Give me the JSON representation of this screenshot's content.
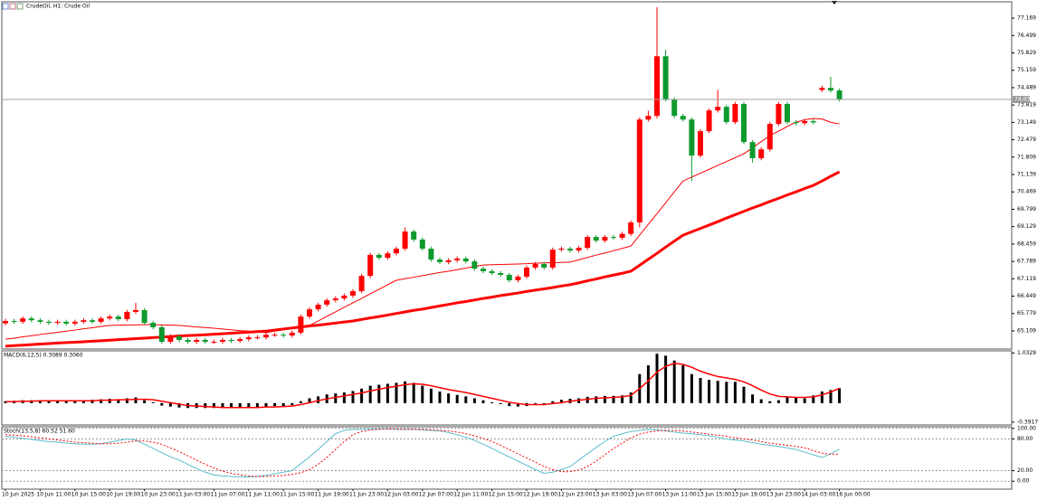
{
  "chart_data": [
    {
      "type": "candlestick",
      "title": "CrudeOil, H1: Crude Oil",
      "categories": [
        "10 Jun 2025",
        null,
        null,
        null,
        "10 Jun 11:00",
        null,
        null,
        null,
        "10 Jun 15:00",
        null,
        null,
        null,
        "10 Jun 19:00",
        null,
        null,
        null,
        "10 Jun 23:00",
        null,
        null,
        null,
        "11 Jun 03:00",
        null,
        null,
        null,
        "11 Jun 07:00",
        null,
        null,
        null,
        "11 Jun 11:00",
        null,
        null,
        null,
        "11 Jun 15:00",
        null,
        null,
        null,
        "11 Jun 19:00",
        null,
        null,
        null,
        "11 Jun 23:00",
        null,
        null,
        null,
        "12 Jun 03:00",
        null,
        null,
        null,
        "12 Jun 07:00",
        null,
        null,
        null,
        "12 Jun 11:00",
        null,
        null,
        null,
        "12 Jun 15:00",
        null,
        null,
        null,
        "12 Jun 19:00",
        null,
        null,
        null,
        "12 Jun 23:00",
        null,
        null,
        null,
        "13 Jun 03:00",
        null,
        null,
        null,
        "13 Jun 07:00",
        null,
        null,
        null,
        "13 Jun 11:00",
        null,
        null,
        null,
        "13 Jun 15:00",
        null,
        null,
        null,
        "13 Jun 19:00",
        null,
        null,
        null,
        "13 Jun 23:00",
        null,
        null,
        null,
        "14 Jun 03:00",
        null,
        null,
        null,
        "16 Jun 00:00"
      ],
      "open": [
        65.4,
        65.49,
        65.46,
        65.59,
        65.52,
        65.46,
        65.42,
        65.46,
        65.39,
        65.46,
        65.52,
        65.46,
        65.59,
        65.66,
        65.56,
        65.84,
        65.91,
        65.42,
        65.25,
        64.69,
        64.9,
        64.76,
        64.69,
        64.76,
        64.69,
        64.69,
        64.76,
        64.72,
        64.79,
        64.86,
        64.86,
        64.96,
        64.96,
        64.93,
        65.04,
        65.66,
        65.94,
        66.12,
        66.29,
        66.36,
        66.47,
        66.64,
        67.23,
        68.04,
        67.93,
        68.1,
        68.28,
        68.94,
        68.63,
        68.28,
        67.86,
        67.76,
        67.83,
        67.9,
        67.79,
        67.51,
        67.41,
        67.34,
        67.27,
        67.06,
        67.2,
        67.55,
        67.69,
        67.55,
        68.24,
        68.28,
        68.21,
        68.31,
        68.73,
        68.59,
        68.73,
        68.7,
        68.85,
        69.29,
        73.26,
        73.4,
        75.7,
        74.03,
        73.4,
        73.26,
        71.87,
        72.81,
        73.61,
        73.75,
        73.16,
        73.86,
        72.39,
        71.77,
        72.11,
        73.09,
        73.86,
        73.16,
        73.12,
        73.2,
        74.4,
        74.48,
        74.38
      ],
      "high": [
        65.57,
        65.57,
        65.67,
        65.67,
        65.6,
        65.54,
        65.54,
        65.54,
        65.54,
        65.6,
        65.6,
        65.67,
        65.74,
        65.74,
        65.92,
        66.19,
        65.99,
        65.5,
        65.33,
        64.98,
        64.98,
        64.84,
        64.84,
        64.84,
        64.77,
        64.84,
        64.84,
        64.87,
        64.94,
        64.94,
        65.04,
        65.04,
        65.04,
        65.12,
        65.74,
        66.02,
        66.2,
        66.37,
        66.44,
        66.55,
        66.72,
        67.31,
        68.12,
        68.12,
        68.18,
        68.36,
        69.1,
        69.02,
        68.71,
        68.36,
        67.94,
        67.91,
        67.98,
        67.98,
        67.87,
        67.59,
        67.49,
        67.42,
        67.35,
        67.28,
        67.63,
        67.77,
        67.77,
        68.32,
        68.36,
        68.36,
        68.39,
        68.81,
        68.81,
        68.81,
        68.81,
        68.93,
        69.37,
        73.34,
        73.6,
        77.59,
        75.95,
        74.11,
        73.48,
        73.34,
        72.89,
        73.69,
        74.4,
        73.83,
        73.94,
        73.94,
        72.47,
        72.19,
        73.17,
        73.94,
        73.94,
        73.24,
        73.28,
        73.28,
        74.56,
        74.9,
        74.46
      ],
      "low": [
        65.32,
        65.38,
        65.38,
        65.44,
        65.38,
        65.34,
        65.34,
        65.31,
        65.31,
        65.38,
        65.38,
        65.38,
        65.51,
        65.48,
        65.48,
        65.76,
        65.34,
        65.17,
        64.61,
        64.61,
        64.68,
        64.61,
        64.61,
        64.61,
        64.61,
        64.61,
        64.64,
        64.64,
        64.71,
        64.78,
        64.78,
        64.88,
        64.85,
        64.85,
        64.96,
        65.58,
        65.86,
        66.04,
        66.21,
        66.28,
        66.39,
        66.56,
        67.15,
        67.85,
        67.85,
        68.02,
        68.2,
        68.55,
        68.2,
        67.78,
        67.68,
        67.68,
        67.75,
        67.71,
        67.43,
        67.33,
        67.26,
        67.19,
        66.98,
        66.98,
        67.12,
        67.47,
        67.47,
        67.47,
        68.16,
        68.13,
        68.13,
        68.23,
        68.51,
        68.51,
        68.62,
        68.62,
        68.77,
        69.1,
        73.18,
        73.3,
        73.95,
        73.32,
        73.18,
        70.89,
        71.79,
        72.73,
        73.53,
        73.08,
        73.08,
        72.31,
        71.6,
        71.69,
        72.03,
        73.01,
        73.08,
        73.04,
        73.04,
        73.07,
        74.32,
        74.3,
        73.95
      ],
      "close": [
        65.49,
        65.46,
        65.59,
        65.52,
        65.46,
        65.42,
        65.46,
        65.39,
        65.46,
        65.52,
        65.46,
        65.59,
        65.66,
        65.56,
        65.84,
        65.91,
        65.42,
        65.25,
        64.69,
        64.9,
        64.76,
        64.69,
        64.76,
        64.69,
        64.69,
        64.76,
        64.72,
        64.79,
        64.86,
        64.86,
        64.96,
        64.96,
        64.93,
        65.04,
        65.66,
        65.94,
        66.12,
        66.29,
        66.36,
        66.47,
        66.64,
        67.23,
        68.04,
        67.93,
        68.1,
        68.28,
        68.94,
        68.63,
        68.28,
        67.86,
        67.76,
        67.83,
        67.9,
        67.79,
        67.51,
        67.41,
        67.34,
        67.27,
        67.06,
        67.2,
        67.55,
        67.69,
        67.55,
        68.24,
        68.28,
        68.21,
        68.31,
        68.73,
        68.59,
        68.73,
        68.7,
        68.85,
        69.29,
        73.26,
        73.4,
        75.7,
        74.03,
        73.4,
        73.26,
        71.87,
        72.81,
        73.61,
        73.75,
        73.16,
        73.86,
        72.39,
        71.77,
        72.11,
        73.09,
        73.86,
        73.16,
        73.12,
        73.2,
        73.15,
        74.48,
        74.38,
        74.03
      ],
      "up_color": "#ff0000",
      "down_color": "#0e9a2c",
      "series": [
        {
          "color": "#ff0000",
          "width": 1,
          "values": [
            64.79,
            64.83,
            64.88,
            64.92,
            64.97,
            65.01,
            65.05,
            65.1,
            65.14,
            65.19,
            65.23,
            65.28,
            65.32,
            65.33,
            65.34,
            65.34,
            65.35,
            65.35,
            65.34,
            65.33,
            65.32,
            65.29,
            65.26,
            65.24,
            65.21,
            65.18,
            65.15,
            65.12,
            65.1,
            65.07,
            65.04,
            65.1,
            65.15,
            65.21,
            65.26,
            65.32,
            65.49,
            65.67,
            65.84,
            66.02,
            66.19,
            66.36,
            66.54,
            66.71,
            66.89,
            67.06,
            67.12,
            67.18,
            67.24,
            67.3,
            67.36,
            67.41,
            67.47,
            67.53,
            67.59,
            67.65,
            67.66,
            67.67,
            67.68,
            67.69,
            67.7,
            67.72,
            67.73,
            67.74,
            67.75,
            67.76,
            67.85,
            67.94,
            68.03,
            68.11,
            68.2,
            68.29,
            68.38,
            68.8,
            69.22,
            69.63,
            70.05,
            70.47,
            70.89,
            71.04,
            71.19,
            71.34,
            71.49,
            71.64,
            71.79,
            71.94,
            72.17,
            72.41,
            72.64,
            72.81,
            72.99,
            73.16,
            73.25,
            73.3,
            73.28,
            73.15,
            73.09
          ]
        },
        {
          "color": "#ff0000",
          "width": 3,
          "values": [
            64.52,
            64.54,
            64.56,
            64.58,
            64.6,
            64.62,
            64.64,
            64.66,
            64.67,
            64.69,
            64.71,
            64.73,
            64.75,
            64.77,
            64.79,
            64.81,
            64.83,
            64.85,
            64.87,
            64.89,
            64.91,
            64.93,
            64.94,
            64.96,
            64.98,
            65.0,
            65.02,
            65.04,
            65.06,
            65.08,
            65.1,
            65.14,
            65.18,
            65.22,
            65.26,
            65.3,
            65.33,
            65.37,
            65.41,
            65.45,
            65.49,
            65.55,
            65.61,
            65.66,
            65.72,
            65.78,
            65.84,
            65.9,
            65.95,
            66.01,
            66.07,
            66.13,
            66.19,
            66.24,
            66.3,
            66.36,
            66.41,
            66.47,
            66.52,
            66.57,
            66.63,
            66.68,
            66.73,
            66.78,
            66.84,
            66.89,
            66.96,
            67.04,
            67.11,
            67.19,
            67.26,
            67.33,
            67.41,
            67.64,
            67.87,
            68.1,
            68.34,
            68.57,
            68.8,
            68.93,
            69.06,
            69.19,
            69.32,
            69.46,
            69.59,
            69.72,
            69.85,
            69.97,
            70.1,
            70.22,
            70.35,
            70.47,
            70.6,
            70.72,
            70.89,
            71.07,
            71.24
          ]
        }
      ],
      "last_price": 74.033,
      "ylim": [
        64.41,
        77.8
      ],
      "yticks": [
        77.169,
        76.499,
        75.829,
        75.159,
        74.489,
        73.819,
        73.149,
        72.479,
        71.809,
        71.139,
        70.469,
        69.799,
        69.129,
        68.459,
        67.789,
        67.119,
        66.449,
        65.779,
        65.109
      ]
    },
    {
      "type": "macd",
      "title": "MACD(6,12,5) 0.3089 0.3060",
      "histogram": {
        "color": "#000000",
        "values": [
          0.04,
          0.05,
          0.06,
          0.06,
          0.05,
          0.05,
          0.04,
          0.04,
          0.05,
          0.06,
          0.07,
          0.08,
          0.09,
          0.08,
          0.1,
          0.12,
          0.06,
          0.02,
          -0.05,
          -0.07,
          -0.09,
          -0.1,
          -0.1,
          -0.1,
          -0.1,
          -0.1,
          -0.09,
          -0.09,
          -0.08,
          -0.08,
          -0.07,
          -0.06,
          -0.06,
          -0.04,
          0.04,
          0.1,
          0.14,
          0.18,
          0.2,
          0.22,
          0.25,
          0.3,
          0.36,
          0.38,
          0.4,
          0.42,
          0.45,
          0.42,
          0.36,
          0.3,
          0.24,
          0.2,
          0.17,
          0.14,
          0.1,
          0.06,
          0.02,
          -0.02,
          -0.06,
          -0.07,
          -0.06,
          -0.04,
          -0.03,
          0.04,
          0.07,
          0.09,
          0.1,
          0.13,
          0.14,
          0.15,
          0.15,
          0.16,
          0.22,
          0.6,
          0.78,
          1.02,
          0.98,
          0.88,
          0.78,
          0.6,
          0.52,
          0.48,
          0.46,
          0.44,
          0.44,
          0.34,
          0.18,
          0.08,
          0.04,
          0.06,
          0.12,
          0.11,
          0.1,
          0.16,
          0.24,
          0.27,
          0.3089
        ]
      },
      "signal": {
        "color": "#ff0000",
        "values": [
          0.03,
          0.03,
          0.04,
          0.04,
          0.05,
          0.05,
          0.05,
          0.05,
          0.05,
          0.05,
          0.05,
          0.06,
          0.06,
          0.07,
          0.07,
          0.08,
          0.08,
          0.07,
          0.04,
          0.01,
          -0.02,
          -0.05,
          -0.06,
          -0.07,
          -0.08,
          -0.09,
          -0.09,
          -0.09,
          -0.09,
          -0.09,
          -0.08,
          -0.08,
          -0.07,
          -0.06,
          -0.03,
          0.01,
          0.05,
          0.09,
          0.12,
          0.15,
          0.18,
          0.21,
          0.25,
          0.29,
          0.32,
          0.35,
          0.38,
          0.4,
          0.39,
          0.36,
          0.32,
          0.28,
          0.25,
          0.22,
          0.18,
          0.14,
          0.1,
          0.06,
          0.02,
          -0.01,
          -0.03,
          -0.03,
          -0.03,
          -0.01,
          0.01,
          0.04,
          0.06,
          0.08,
          0.1,
          0.11,
          0.12,
          0.13,
          0.16,
          0.3,
          0.46,
          0.64,
          0.76,
          0.82,
          0.8,
          0.74,
          0.66,
          0.6,
          0.55,
          0.52,
          0.49,
          0.44,
          0.36,
          0.27,
          0.19,
          0.14,
          0.13,
          0.12,
          0.12,
          0.13,
          0.17,
          0.23,
          0.306
        ]
      },
      "ylim": [
        -0.45,
        1.08
      ],
      "yticks": [
        1.0329,
        -0.3917
      ]
    },
    {
      "type": "stochastic",
      "title": "Stoch(13,5,8) 60.52 51.60",
      "main": {
        "color": "#5bbccc",
        "values": [
          85,
          83,
          81,
          79,
          77,
          75,
          74,
          72,
          71,
          70,
          70,
          71,
          74,
          77,
          80,
          78,
          70,
          62,
          54,
          46,
          40,
          32,
          24,
          17,
          12,
          10,
          9,
          8,
          8,
          9,
          11,
          14,
          17,
          20,
          33,
          46,
          60,
          75,
          90,
          96,
          98,
          98,
          99,
          99,
          99,
          98,
          98,
          98,
          97,
          96,
          95,
          92,
          88,
          83,
          77,
          70,
          62,
          54,
          46,
          38,
          30,
          22,
          15,
          17,
          22,
          28,
          40,
          52,
          64,
          75,
          85,
          90,
          94,
          96,
          98,
          97,
          95,
          93,
          91,
          90,
          88,
          86,
          83,
          80,
          78,
          76,
          73,
          70,
          68,
          66,
          63,
          60,
          55,
          50,
          45,
          52,
          60.52
        ]
      },
      "signal": {
        "color": "#ff0000",
        "dashed": true,
        "values": [
          88,
          87,
          86,
          84,
          82,
          80,
          78,
          76,
          74,
          73,
          72,
          71,
          71,
          72,
          74,
          76,
          76,
          74,
          70,
          63,
          56,
          48,
          40,
          32,
          25,
          19,
          15,
          12,
          10,
          9,
          9,
          10,
          11,
          13,
          16,
          22,
          32,
          45,
          60,
          75,
          88,
          94,
          97,
          98,
          99,
          99,
          98,
          98,
          98,
          97,
          96,
          95,
          93,
          90,
          86,
          81,
          75,
          68,
          60,
          52,
          44,
          36,
          28,
          22,
          18,
          18,
          21,
          28,
          38,
          50,
          62,
          72,
          82,
          89,
          93,
          95,
          96,
          96,
          95,
          93,
          91,
          89,
          87,
          85,
          82,
          80,
          78,
          75,
          72,
          70,
          68,
          66,
          63,
          58,
          53,
          51,
          51.6
        ]
      },
      "ylim": [
        -15,
        103
      ],
      "yticks": [
        {
          "value": 100,
          "label": "100.00"
        },
        {
          "value": 80,
          "label": "80.00"
        },
        {
          "value": 20,
          "label": "20.00"
        },
        {
          "value": 0,
          "label": "0.00"
        }
      ],
      "grid": true
    }
  ]
}
